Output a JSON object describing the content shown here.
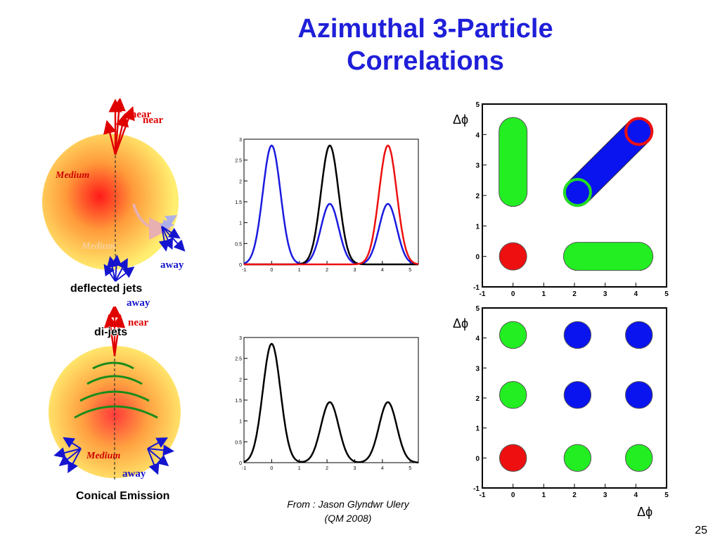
{
  "slide": {
    "title_line1": "Azimuthal 3-Particle",
    "title_line2": "Correlations",
    "source_line1": "From : Jason Glyndwr Ulery",
    "source_line2": "(QM 2008)",
    "page_number": "25"
  },
  "left_diagrams": {
    "top": {
      "near_labels": [
        "near",
        "near"
      ],
      "medium_label": "Medium",
      "medium_faded_label": "Medium",
      "away_labels": [
        "away",
        "away"
      ],
      "caption": "deflected jets"
    },
    "bottom": {
      "near_label": "near",
      "caption_overlay": "di-jets",
      "medium_label": "Medium",
      "away_label": "away",
      "caption": "Conical Emission"
    }
  },
  "colors": {
    "title": "#1f1fd9",
    "near": "#e00000",
    "away": "#1515d0",
    "wave": "#1a8c1a",
    "green_blob": "#22ee22",
    "blue_blob": "#0a14ee",
    "red_blob": "#ee1010"
  },
  "chart_data": [
    {
      "type": "line",
      "xlim": [
        -1,
        5.3
      ],
      "ylim": [
        0,
        3
      ],
      "x_ticks": [
        "-1",
        "0",
        "1",
        "2",
        "3",
        "4",
        "5"
      ],
      "y_ticks": [
        "0",
        "0.5",
        "1",
        "1.5",
        "2",
        "2.5",
        "3"
      ],
      "series": [
        {
          "color": "blue",
          "peaks": [
            {
              "x": 0,
              "y": 2.85
            },
            {
              "x": 2.1,
              "y": 1.45
            },
            {
              "x": 4.2,
              "y": 1.45
            }
          ]
        },
        {
          "color": "black",
          "peaks": [
            {
              "x": 2.1,
              "y": 2.85
            }
          ]
        },
        {
          "color": "red",
          "peaks": [
            {
              "x": 4.2,
              "y": 2.85
            }
          ]
        }
      ]
    },
    {
      "type": "line",
      "xlim": [
        -1,
        5.3
      ],
      "ylim": [
        0,
        3
      ],
      "x_ticks": [
        "-1",
        "0",
        "1",
        "2",
        "3",
        "4",
        "5"
      ],
      "y_ticks": [
        "0",
        "0.5",
        "1",
        "1.5",
        "2",
        "2.5",
        "3"
      ],
      "series": [
        {
          "color": "black",
          "peaks": [
            {
              "x": 0,
              "y": 2.85
            },
            {
              "x": 2.1,
              "y": 1.45
            },
            {
              "x": 4.2,
              "y": 1.45
            }
          ]
        }
      ]
    },
    {
      "type": "heatmap",
      "xlim": [
        -1,
        5
      ],
      "ylim": [
        -1,
        5
      ],
      "x_ticks": [
        "-1",
        "0",
        "1",
        "2",
        "3",
        "4",
        "5"
      ],
      "y_ticks": [
        "-1",
        "0",
        "1",
        "2",
        "3",
        "4",
        "5"
      ],
      "ylabel": "Δϕ",
      "regions": [
        {
          "shape": "vertical band",
          "color": "green",
          "x": 0,
          "y_from": 2.1,
          "y_to": 4.1
        },
        {
          "shape": "horizontal band",
          "color": "green",
          "y": 0,
          "x_from": 2.1,
          "x_to": 4.1
        },
        {
          "shape": "diagonal band",
          "color": "blue",
          "from": [
            2.1,
            2.1
          ],
          "to": [
            4.1,
            4.1
          ]
        },
        {
          "shape": "circle",
          "color": "red",
          "x": 0,
          "y": 0
        },
        {
          "shape": "ring",
          "color": "red",
          "x": 4.1,
          "y": 4.1
        },
        {
          "shape": "ring",
          "color": "green",
          "x": 2.1,
          "y": 2.1
        }
      ]
    },
    {
      "type": "heatmap",
      "xlim": [
        -1,
        5
      ],
      "ylim": [
        -1,
        5
      ],
      "x_ticks": [
        "-1",
        "0",
        "1",
        "2",
        "3",
        "4",
        "5"
      ],
      "y_ticks": [
        "-1",
        "0",
        "1",
        "2",
        "3",
        "4",
        "5"
      ],
      "xlabel": "Δϕ",
      "ylabel": "Δϕ",
      "regions": [
        {
          "shape": "circle",
          "color": "green",
          "x": 0,
          "y": 4.1
        },
        {
          "shape": "circle",
          "color": "blue",
          "x": 2.1,
          "y": 4.1
        },
        {
          "shape": "circle",
          "color": "blue",
          "x": 4.1,
          "y": 4.1
        },
        {
          "shape": "circle",
          "color": "green",
          "x": 0,
          "y": 2.1
        },
        {
          "shape": "circle",
          "color": "blue",
          "x": 2.1,
          "y": 2.1
        },
        {
          "shape": "circle",
          "color": "blue",
          "x": 4.1,
          "y": 2.1
        },
        {
          "shape": "circle",
          "color": "red",
          "x": 0,
          "y": 0
        },
        {
          "shape": "circle",
          "color": "green",
          "x": 2.1,
          "y": 0
        },
        {
          "shape": "circle",
          "color": "green",
          "x": 4.1,
          "y": 0
        }
      ]
    }
  ]
}
